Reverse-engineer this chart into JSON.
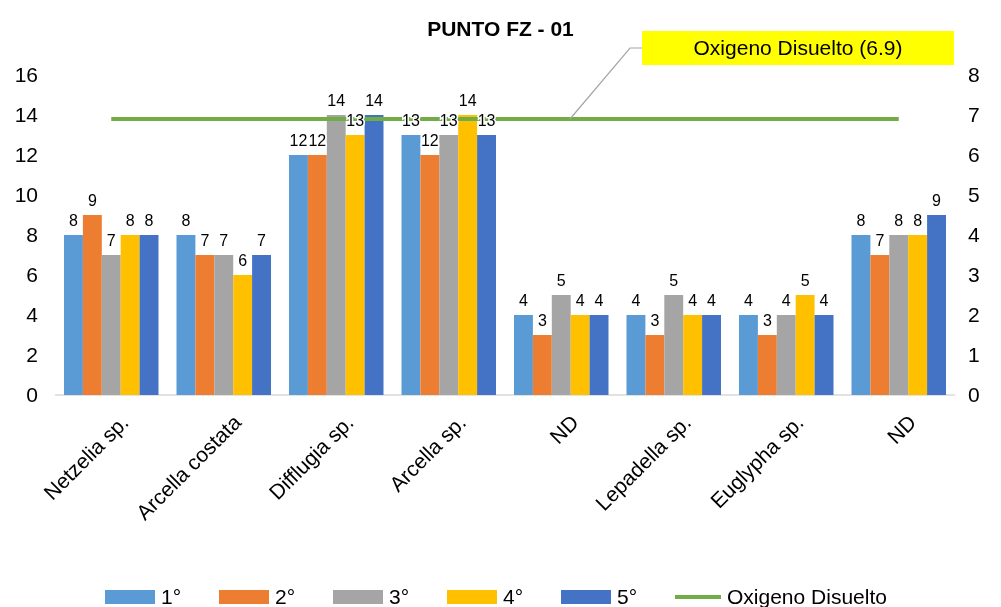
{
  "chart_data": {
    "type": "bar",
    "title": "PUNTO  FZ - 01",
    "categories": [
      "Netzelia sp.",
      "Arcella costata",
      "Difflugia sp.",
      "Arcella  sp.",
      "ND",
      "Lepadella sp.",
      "Euglypha sp.",
      "ND"
    ],
    "series": [
      {
        "name": "1°",
        "color": "#5b9bd5",
        "values": [
          8,
          8,
          12,
          13,
          4,
          4,
          4,
          8
        ]
      },
      {
        "name": "2°",
        "color": "#ed7d31",
        "values": [
          9,
          7,
          12,
          12,
          3,
          3,
          3,
          7
        ]
      },
      {
        "name": "3°",
        "color": "#a5a5a5",
        "values": [
          7,
          7,
          14,
          13,
          5,
          5,
          4,
          8
        ]
      },
      {
        "name": "4°",
        "color": "#ffc000",
        "values": [
          8,
          6,
          13,
          14,
          4,
          4,
          5,
          8
        ]
      },
      {
        "name": "5°",
        "color": "#4472c4",
        "values": [
          8,
          7,
          14,
          13,
          4,
          4,
          4,
          9
        ]
      },
      {
        "name": "Oxigeno Disuelto",
        "color": "#70ad47",
        "type": "line",
        "axis": "y2",
        "marker": "none",
        "values": [
          6.9,
          6.9,
          6.9,
          6.9,
          6.9,
          6.9,
          6.9,
          6.9
        ],
        "value_labels": [
          null,
          null,
          null,
          null,
          null,
          null,
          null,
          null
        ]
      }
    ],
    "ylim": [
      0,
      16
    ],
    "yticks": [
      0,
      2,
      4,
      6,
      8,
      10,
      12,
      14,
      16
    ],
    "y2lim": [
      0,
      8
    ],
    "y2ticks": [
      0,
      1,
      2,
      3,
      4,
      5,
      6,
      7,
      8
    ],
    "data_labels": true,
    "legend": "bottom",
    "grid": false,
    "annotations": [
      "Oxigeno Disuelto (6.9)"
    ]
  }
}
